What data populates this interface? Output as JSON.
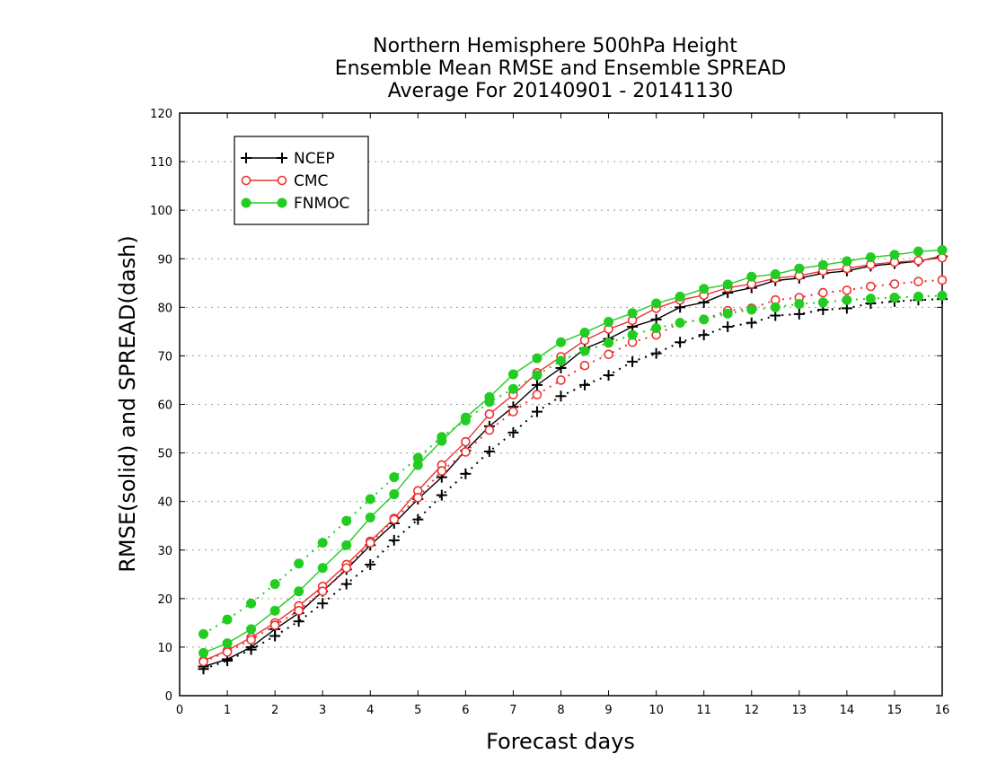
{
  "chart_data": {
    "type": "line",
    "title_lines": [
      "Northern Hemisphere 500hPa Height",
      "Ensemble Mean RMSE and Ensemble SPREAD",
      "Average For 20140901 - 20141130"
    ],
    "xlabel": "Forecast days",
    "ylabel": "RMSE(solid) and SPREAD(dash)",
    "xlim": [
      0,
      16
    ],
    "ylim": [
      0,
      120
    ],
    "xticks": [
      "0",
      "1",
      "2",
      "3",
      "4",
      "5",
      "6",
      "7",
      "8",
      "9",
      "10",
      "11",
      "12",
      "13",
      "14",
      "15",
      "16"
    ],
    "yticks": [
      "0",
      "10",
      "20",
      "30",
      "40",
      "50",
      "60",
      "70",
      "80",
      "90",
      "100",
      "110",
      "120"
    ],
    "grid": "horizontal dotted",
    "legend_position": "top-left",
    "x": [
      0.5,
      1,
      1.5,
      2,
      2.5,
      3,
      3.5,
      4,
      4.5,
      5,
      5.5,
      6,
      6.5,
      7,
      7.5,
      8,
      8.5,
      9,
      9.5,
      10,
      10.5,
      11,
      11.5,
      12,
      12.5,
      13,
      13.5,
      14,
      14.5,
      15,
      15.5,
      16
    ],
    "series": [
      {
        "name": "NCEP",
        "color": "#000000",
        "marker": "plus",
        "rmse": [
          6.0,
          7.5,
          10.0,
          13.7,
          17.0,
          21.5,
          26.0,
          31.0,
          35.5,
          40.5,
          45.0,
          50.5,
          55.5,
          59.5,
          64.0,
          67.5,
          71.5,
          73.5,
          76.0,
          77.5,
          80.0,
          81.0,
          83.0,
          84.0,
          85.5,
          86.0,
          87.0,
          87.5,
          88.5,
          89.0,
          89.5,
          90.5
        ],
        "spread": [
          5.5,
          7.2,
          9.5,
          12.3,
          15.3,
          19.0,
          23.0,
          27.0,
          32.0,
          36.3,
          41.3,
          45.7,
          50.3,
          54.2,
          58.5,
          61.7,
          64.0,
          66.0,
          68.8,
          70.5,
          72.8,
          74.3,
          76.0,
          76.8,
          78.3,
          78.6,
          79.5,
          79.8,
          80.8,
          81.2,
          81.5,
          81.7
        ]
      },
      {
        "name": "CMC",
        "color": "#ee3333",
        "marker": "open-circle",
        "rmse": [
          7.2,
          9.3,
          12.0,
          15.0,
          18.5,
          22.5,
          27.0,
          31.8,
          36.5,
          42.2,
          47.5,
          52.3,
          58.0,
          62.0,
          66.5,
          69.8,
          73.2,
          75.5,
          77.3,
          79.8,
          81.5,
          82.5,
          84.0,
          84.8,
          86.0,
          86.5,
          87.5,
          88.0,
          88.8,
          89.3,
          89.6,
          90.2
        ],
        "spread": [
          7.0,
          9.0,
          11.5,
          14.5,
          17.5,
          21.5,
          26.3,
          31.5,
          36.3,
          40.8,
          46.3,
          50.2,
          54.7,
          58.5,
          62.0,
          65.0,
          68.0,
          70.3,
          72.8,
          74.3,
          76.8,
          77.5,
          79.3,
          79.8,
          81.5,
          82.0,
          83.0,
          83.5,
          84.3,
          84.8,
          85.3,
          85.6
        ]
      },
      {
        "name": "FNMOC",
        "color": "#22cc22",
        "marker": "filled-circle",
        "rmse": [
          8.8,
          10.8,
          13.7,
          17.5,
          21.5,
          26.3,
          31.0,
          36.7,
          41.5,
          47.5,
          52.5,
          57.3,
          61.5,
          66.2,
          69.5,
          72.8,
          74.8,
          77.0,
          78.8,
          80.8,
          82.2,
          83.8,
          84.7,
          86.3,
          86.8,
          88.0,
          88.7,
          89.5,
          90.3,
          90.8,
          91.5,
          91.8
        ],
        "spread": [
          12.7,
          15.7,
          19.0,
          23.0,
          27.2,
          31.5,
          36.0,
          40.5,
          45.0,
          49.0,
          53.3,
          56.7,
          60.5,
          63.2,
          66.0,
          69.0,
          71.0,
          72.7,
          74.3,
          75.7,
          76.8,
          77.5,
          78.7,
          79.5,
          80.0,
          80.7,
          81.0,
          81.5,
          81.8,
          82.0,
          82.2,
          82.4
        ]
      }
    ]
  }
}
